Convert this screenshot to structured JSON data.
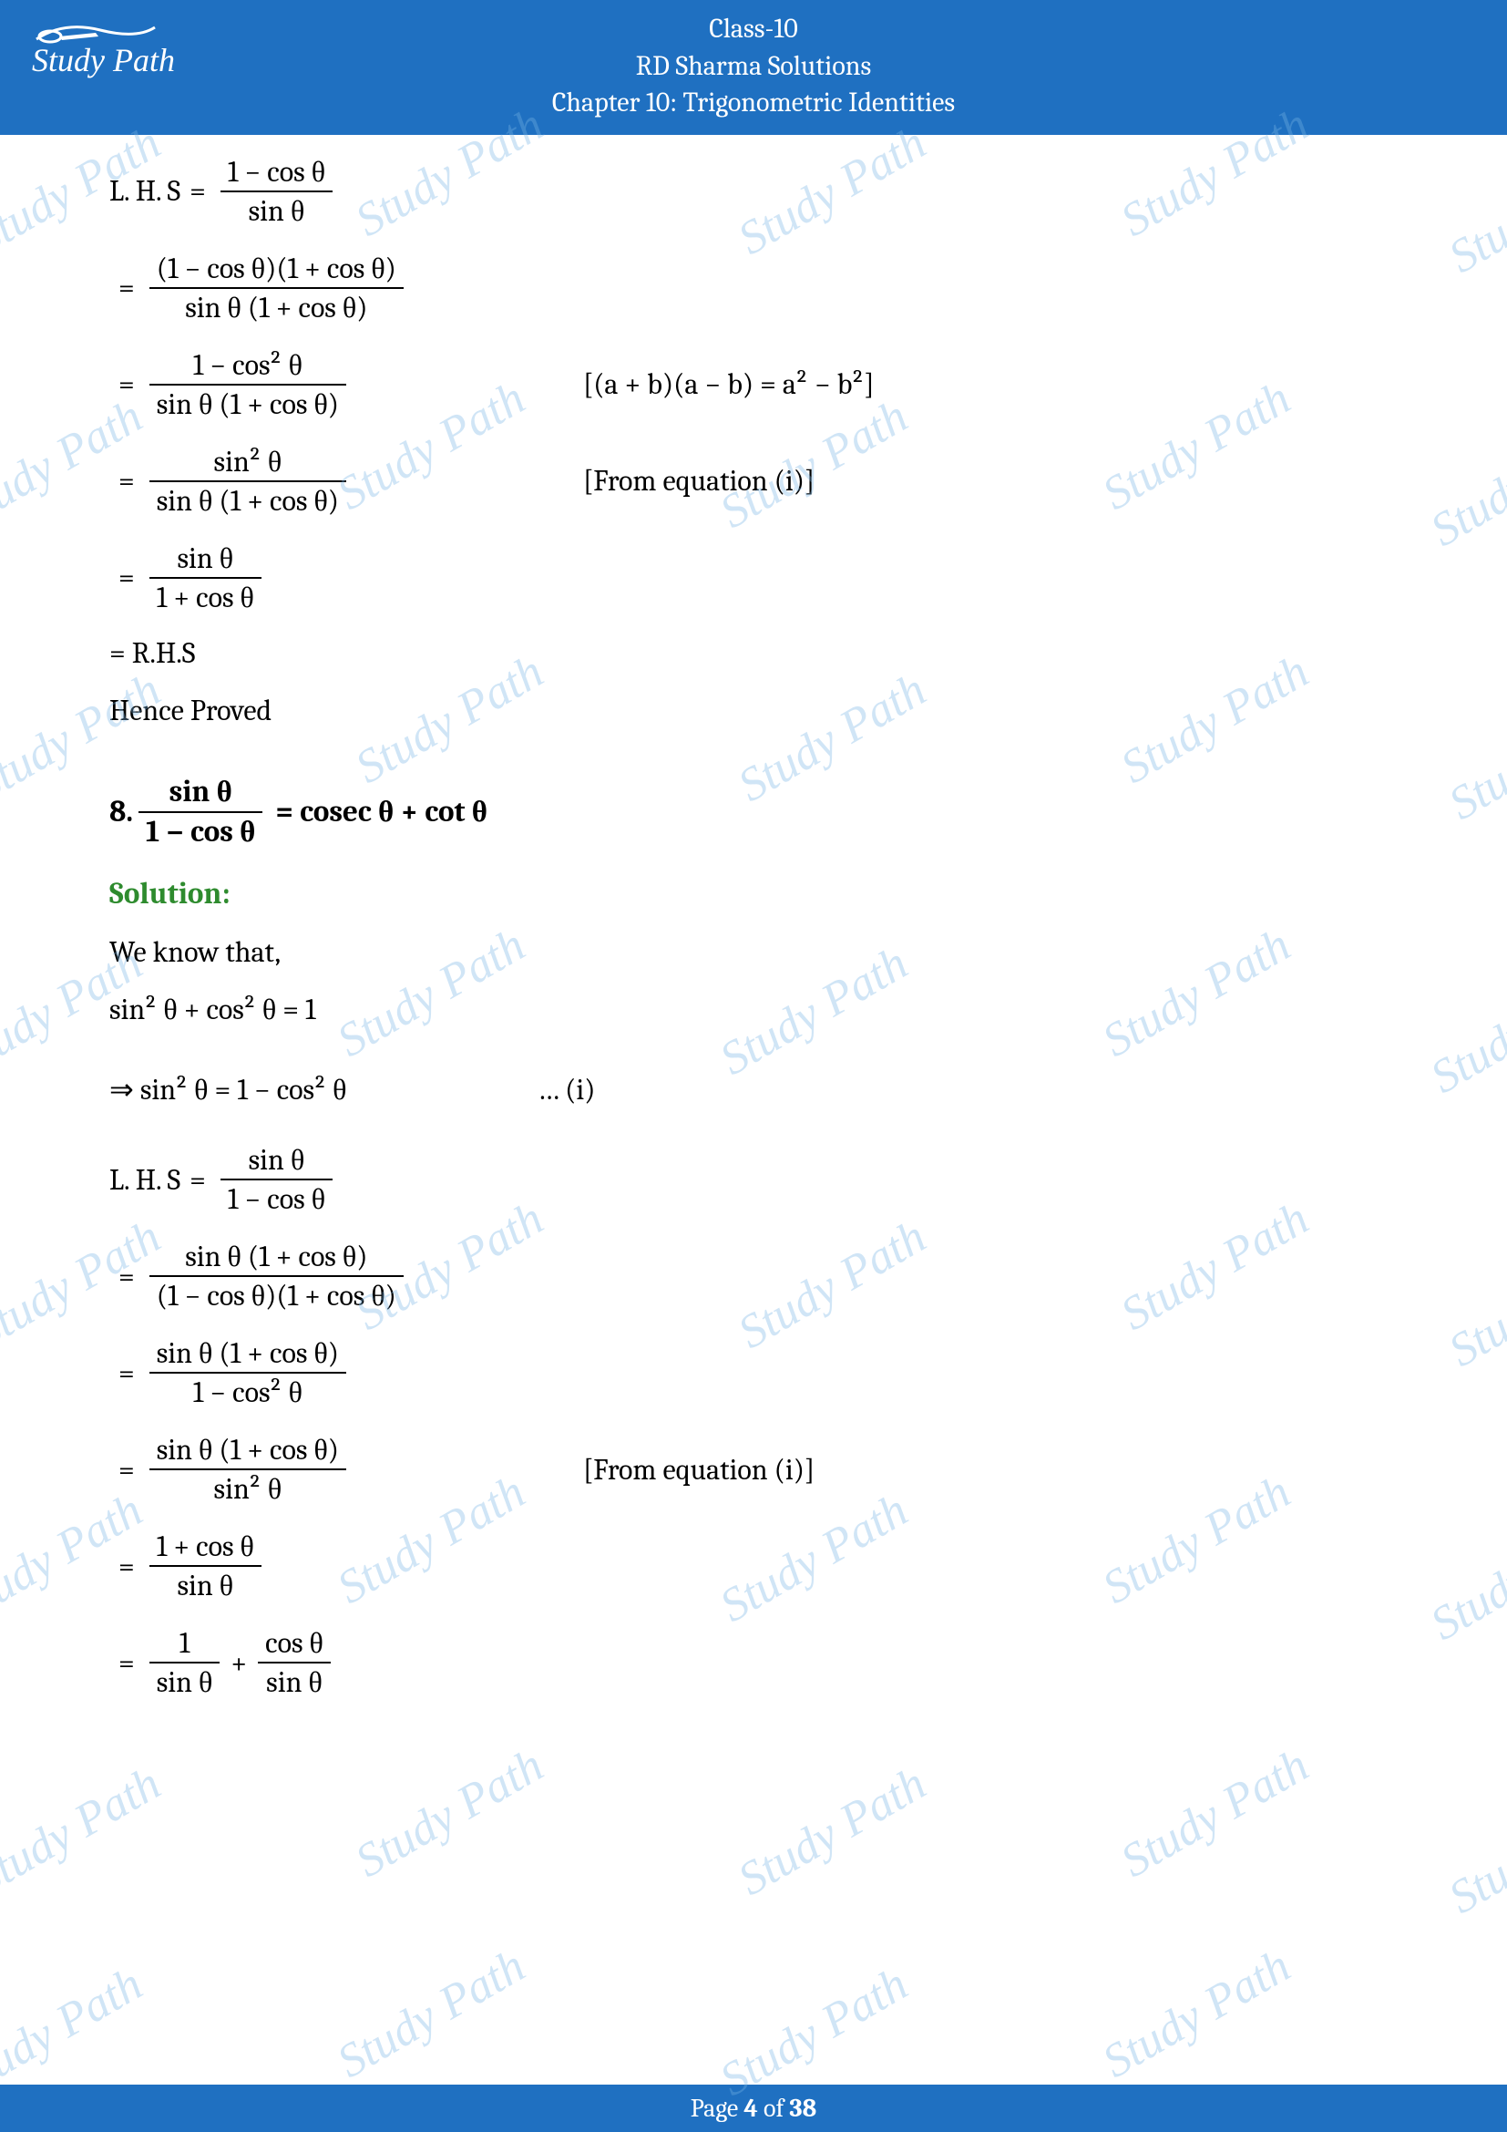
{
  "header": {
    "line1": "Class-10",
    "line2": "RD Sharma Solutions",
    "line3": "Chapter 10: Trigonometric Identities",
    "logo_text": "Study Path"
  },
  "footer": {
    "prefix": "Page ",
    "current": "4",
    "middle": " of ",
    "total": "38"
  },
  "watermark_text": "Study Path",
  "lines": {
    "l1_lhs": "L. H. S",
    "l1_num": "1 − cos θ",
    "l1_den": "sin θ",
    "l2_num": "(1 − cos θ)(1 + cos θ)",
    "l2_den": "sin θ (1 + cos θ)",
    "l3_num": "1 − cos² θ",
    "l3_den": "sin θ (1 + cos θ)",
    "l3_note": "[(a + b)(a − b) = a² − b²]",
    "l4_num": "sin² θ",
    "l4_den": "sin θ (1 + cos θ)",
    "l4_note": "[From equation (i)]",
    "l5_num": "sin θ",
    "l5_den": "1 + cos θ",
    "l6": "= R.H.S",
    "l7": "Hence Proved",
    "q8_prefix": "8.",
    "q8_num": "sin θ",
    "q8_den": "1 − cos θ",
    "q8_rhs": "= cosec θ + cot θ",
    "sol": "Solution:",
    "p1": "We know that,",
    "p2": "sin² θ + cos² θ = 1",
    "p3_left": "⇒ sin² θ = 1 − cos² θ",
    "p3_right": "… (i)",
    "s1_lhs": "L. H. S",
    "s1_num": "sin θ",
    "s1_den": "1 − cos θ",
    "s2_num": "sin θ (1 + cos θ)",
    "s2_den": "(1 − cos θ)(1 + cos θ)",
    "s3_num": "sin θ (1 + cos θ)",
    "s3_den": "1 − cos² θ",
    "s4_num": "sin θ (1 + cos θ)",
    "s4_den": "sin² θ",
    "s4_note": "[From equation (i)]",
    "s5_num": "1 + cos θ",
    "s5_den": "sin θ",
    "s6a_num": "1",
    "s6a_den": "sin θ",
    "s6b_num": "cos θ",
    "s6b_den": "sin θ"
  },
  "colors": {
    "header_bg": "#1f70c1",
    "solution": "#2e8b2e",
    "watermark": "rgba(120,180,230,0.35)"
  }
}
